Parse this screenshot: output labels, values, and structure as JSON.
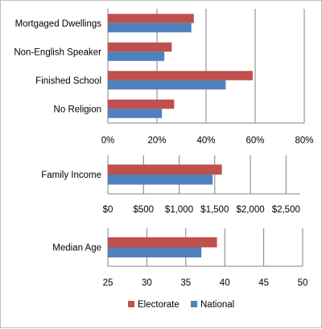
{
  "colors": {
    "electorate": "#c0504d",
    "national": "#4f81bd"
  },
  "legend": {
    "electorate": "Electorate",
    "national": "National"
  },
  "chart_data": [
    {
      "type": "bar",
      "orientation": "horizontal",
      "categories": [
        "Mortgaged Dwellings",
        "Non-English Speaker",
        "Finished School",
        "No Religion"
      ],
      "series": [
        {
          "name": "Electorate",
          "values": [
            35,
            26,
            59,
            27
          ]
        },
        {
          "name": "National",
          "values": [
            34,
            23,
            48,
            22
          ]
        }
      ],
      "xlim": [
        0,
        80
      ],
      "ticks": [
        0,
        20,
        40,
        60,
        80
      ],
      "tick_labels": [
        "0%",
        "20%",
        "40%",
        "60%",
        "80%"
      ],
      "grid": true
    },
    {
      "type": "bar",
      "orientation": "horizontal",
      "categories": [
        "Family Income"
      ],
      "series": [
        {
          "name": "Electorate",
          "values": [
            1600
          ]
        },
        {
          "name": "National",
          "values": [
            1470
          ]
        }
      ],
      "xlim": [
        0,
        2700
      ],
      "ticks": [
        0,
        500,
        1000,
        1500,
        2000,
        2500
      ],
      "tick_labels": [
        "$0",
        "$500",
        "$1,000",
        "$1,500",
        "$2,000",
        "$2,500"
      ],
      "grid": true
    },
    {
      "type": "bar",
      "orientation": "horizontal",
      "categories": [
        "Median Age"
      ],
      "series": [
        {
          "name": "Electorate",
          "values": [
            39
          ]
        },
        {
          "name": "National",
          "values": [
            37
          ]
        }
      ],
      "xlim": [
        25,
        50
      ],
      "ticks": [
        25,
        30,
        35,
        40,
        45,
        50
      ],
      "tick_labels": [
        "25",
        "30",
        "35",
        "40",
        "45",
        "50"
      ],
      "grid": true
    }
  ]
}
